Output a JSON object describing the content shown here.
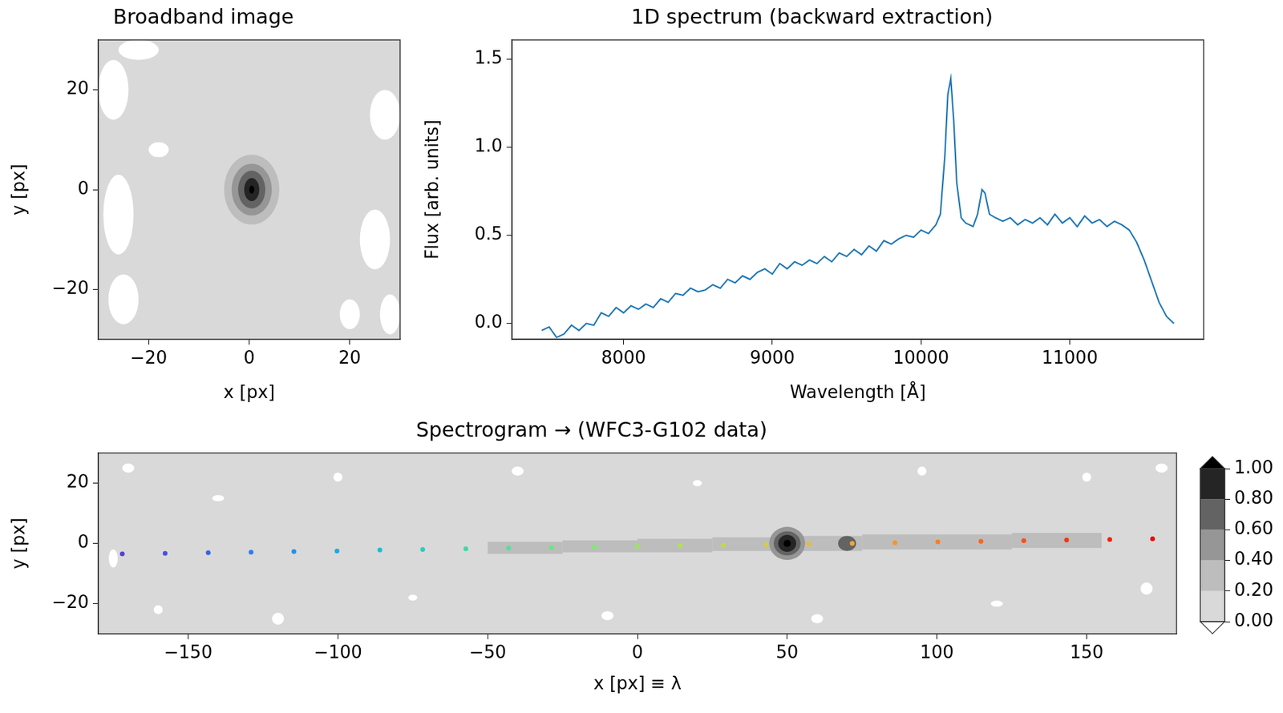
{
  "chart_data": [
    {
      "type": "image",
      "title": "Broadband image",
      "xlabel": "x [px]",
      "ylabel": "y [px]",
      "xlim": [
        -30,
        30
      ],
      "ylim": [
        -30,
        30
      ],
      "xticks": [
        {
          "value": -20,
          "label": "−20"
        },
        0,
        20
      ],
      "yticks": [
        {
          "value": -20,
          "label": "−20"
        },
        0,
        20
      ],
      "grid": false,
      "background": 0.1,
      "regions": [
        {
          "value": -0.05,
          "center": [
            -27,
            20
          ],
          "radii": [
            3,
            6
          ]
        },
        {
          "value": -0.05,
          "center": [
            -26,
            -5
          ],
          "radii": [
            3,
            8
          ]
        },
        {
          "value": -0.05,
          "center": [
            -25,
            -22
          ],
          "radii": [
            3,
            5
          ]
        },
        {
          "value": -0.05,
          "center": [
            -18,
            8
          ],
          "radii": [
            2,
            1.5
          ]
        },
        {
          "value": -0.05,
          "center": [
            -22,
            28
          ],
          "radii": [
            4,
            2
          ]
        },
        {
          "value": -0.05,
          "center": [
            27,
            15
          ],
          "radii": [
            3,
            5
          ]
        },
        {
          "value": -0.05,
          "center": [
            25,
            -10
          ],
          "radii": [
            3,
            6
          ]
        },
        {
          "value": -0.05,
          "center": [
            20,
            -25
          ],
          "radii": [
            2,
            3
          ]
        },
        {
          "value": -0.05,
          "center": [
            28,
            -25
          ],
          "radii": [
            2,
            4
          ]
        },
        {
          "value": 0.3,
          "center": [
            0.5,
            0
          ],
          "radii": [
            5.5,
            7
          ]
        },
        {
          "value": 0.5,
          "center": [
            0.5,
            0
          ],
          "radii": [
            4,
            5.2
          ]
        },
        {
          "value": 0.7,
          "center": [
            0.5,
            0
          ],
          "radii": [
            2.7,
            3.8
          ]
        },
        {
          "value": 0.9,
          "center": [
            0.5,
            0
          ],
          "radii": [
            1.5,
            2.3
          ]
        },
        {
          "value": 1.05,
          "center": [
            0.5,
            0
          ],
          "radii": [
            0.5,
            0.8
          ]
        }
      ]
    },
    {
      "type": "line",
      "title": "1D spectrum (backward extraction)",
      "xlabel": "Wavelength [Å]",
      "ylabel": "Flux [arb. units]",
      "color": "#1f77b4",
      "grid": false,
      "xlim": [
        7250,
        11900
      ],
      "ylim": [
        -0.09,
        1.61
      ],
      "xticks": [
        8000,
        9000,
        10000,
        11000
      ],
      "yticks": [
        {
          "value": 0,
          "label": "0.0"
        },
        {
          "value": 0.5,
          "label": "0.5"
        },
        {
          "value": 1,
          "label": "1.0"
        },
        {
          "value": 1.5,
          "label": "1.5"
        }
      ],
      "x": [
        7450,
        7500,
        7550,
        7600,
        7650,
        7700,
        7750,
        7800,
        7850,
        7900,
        7950,
        8000,
        8050,
        8100,
        8150,
        8200,
        8250,
        8300,
        8350,
        8400,
        8450,
        8500,
        8550,
        8600,
        8650,
        8700,
        8750,
        8800,
        8850,
        8900,
        8950,
        9000,
        9050,
        9100,
        9150,
        9200,
        9250,
        9300,
        9350,
        9400,
        9450,
        9500,
        9550,
        9600,
        9650,
        9700,
        9750,
        9800,
        9850,
        9900,
        9950,
        10000,
        10050,
        10100,
        10130,
        10160,
        10180,
        10200,
        10220,
        10240,
        10270,
        10300,
        10350,
        10380,
        10410,
        10430,
        10460,
        10500,
        10550,
        10600,
        10650,
        10700,
        10750,
        10800,
        10850,
        10900,
        10950,
        11000,
        11050,
        11100,
        11150,
        11200,
        11250,
        11300,
        11350,
        11400,
        11450,
        11500,
        11550,
        11600,
        11650,
        11700
      ],
      "values": [
        -0.04,
        -0.02,
        -0.08,
        -0.06,
        -0.01,
        -0.04,
        0,
        -0.01,
        0.06,
        0.04,
        0.09,
        0.06,
        0.1,
        0.08,
        0.11,
        0.09,
        0.14,
        0.12,
        0.17,
        0.16,
        0.2,
        0.18,
        0.19,
        0.22,
        0.2,
        0.25,
        0.23,
        0.27,
        0.25,
        0.29,
        0.31,
        0.28,
        0.34,
        0.31,
        0.35,
        0.33,
        0.36,
        0.34,
        0.38,
        0.35,
        0.4,
        0.38,
        0.42,
        0.39,
        0.44,
        0.41,
        0.47,
        0.45,
        0.48,
        0.5,
        0.49,
        0.53,
        0.51,
        0.56,
        0.62,
        0.95,
        1.3,
        1.39,
        1.15,
        0.8,
        0.6,
        0.57,
        0.55,
        0.62,
        0.76,
        0.74,
        0.62,
        0.6,
        0.58,
        0.6,
        0.56,
        0.59,
        0.57,
        0.6,
        0.56,
        0.62,
        0.57,
        0.6,
        0.55,
        0.61,
        0.57,
        0.59,
        0.55,
        0.58,
        0.56,
        0.53,
        0.46,
        0.36,
        0.24,
        0.12,
        0.04,
        0
      ]
    },
    {
      "type": "image",
      "title": "Spectrogram → (WFC3-G102 data)",
      "xlabel": "x [px] ≡ λ",
      "ylabel": "y [px]",
      "xlim": [
        -180,
        180
      ],
      "ylim": [
        -30,
        30
      ],
      "xticks": [
        {
          "value": -150,
          "label": "−150"
        },
        {
          "value": -100,
          "label": "−100"
        },
        {
          "value": -50,
          "label": "−50"
        },
        0,
        50,
        100,
        150
      ],
      "yticks": [
        {
          "value": -20,
          "label": "−20"
        },
        0,
        20
      ],
      "grid": false,
      "background": 0.1,
      "regions": [
        {
          "value": -0.05,
          "center": [
            -170,
            25
          ],
          "radii": [
            2,
            1.5
          ]
        },
        {
          "value": -0.05,
          "center": [
            -175,
            -5
          ],
          "radii": [
            1.5,
            3
          ]
        },
        {
          "value": -0.05,
          "center": [
            -160,
            -22
          ],
          "radii": [
            1.5,
            1.5
          ]
        },
        {
          "value": -0.05,
          "center": [
            -140,
            15
          ],
          "radii": [
            2,
            1
          ]
        },
        {
          "value": -0.05,
          "center": [
            -120,
            -25
          ],
          "radii": [
            2,
            2
          ]
        },
        {
          "value": -0.05,
          "center": [
            -100,
            22
          ],
          "radii": [
            1.5,
            1.5
          ]
        },
        {
          "value": -0.05,
          "center": [
            -75,
            -18
          ],
          "radii": [
            1.5,
            1
          ]
        },
        {
          "value": -0.05,
          "center": [
            -40,
            24
          ],
          "radii": [
            2,
            1.5
          ]
        },
        {
          "value": -0.05,
          "center": [
            -10,
            -24
          ],
          "radii": [
            2,
            1.5
          ]
        },
        {
          "value": -0.05,
          "center": [
            20,
            20
          ],
          "radii": [
            1.5,
            1
          ]
        },
        {
          "value": -0.05,
          "center": [
            60,
            -25
          ],
          "radii": [
            2,
            1.5
          ]
        },
        {
          "value": -0.05,
          "center": [
            95,
            24
          ],
          "radii": [
            1.5,
            1.5
          ]
        },
        {
          "value": -0.05,
          "center": [
            120,
            -20
          ],
          "radii": [
            2,
            1
          ]
        },
        {
          "value": -0.05,
          "center": [
            150,
            22
          ],
          "radii": [
            1.5,
            1.5
          ]
        },
        {
          "value": -0.05,
          "center": [
            170,
            -15
          ],
          "radii": [
            2,
            2
          ]
        },
        {
          "value": -0.05,
          "center": [
            175,
            25
          ],
          "radii": [
            2,
            1.5
          ]
        },
        {
          "value": 0.3,
          "x": [
            -50,
            -25
          ],
          "y": [
            -3.5,
            0.5
          ]
        },
        {
          "value": 0.3,
          "x": [
            -25,
            0
          ],
          "y": [
            -3,
            1
          ]
        },
        {
          "value": 0.3,
          "x": [
            0,
            25
          ],
          "y": [
            -3,
            1.5
          ]
        },
        {
          "value": 0.3,
          "x": [
            25,
            50
          ],
          "y": [
            -2.5,
            2
          ]
        },
        {
          "value": 0.3,
          "x": [
            50,
            75
          ],
          "y": [
            -2.5,
            2.5
          ]
        },
        {
          "value": 0.3,
          "x": [
            75,
            100
          ],
          "y": [
            -2,
            3
          ]
        },
        {
          "value": 0.3,
          "x": [
            100,
            125
          ],
          "y": [
            -2,
            3
          ]
        },
        {
          "value": 0.3,
          "x": [
            125,
            155
          ],
          "y": [
            -1.5,
            3.5
          ]
        },
        {
          "value": 0.5,
          "center": [
            50,
            0
          ],
          "radii": [
            6,
            5.5
          ]
        },
        {
          "value": 0.7,
          "center": [
            50,
            0
          ],
          "radii": [
            4.5,
            4
          ]
        },
        {
          "value": 0.9,
          "center": [
            50,
            0
          ],
          "radii": [
            3,
            2.8
          ]
        },
        {
          "value": 1.05,
          "center": [
            50,
            0
          ],
          "radii": [
            1.2,
            1.2
          ]
        },
        {
          "value": 0.65,
          "center": [
            70,
            0
          ],
          "radii": [
            3,
            2.5
          ]
        }
      ],
      "points": {
        "marker": "circle",
        "x": [
          -172,
          -157.7,
          -143.3,
          -129,
          -114.7,
          -100.3,
          -86,
          -71.7,
          -57.3,
          -43,
          -28.7,
          -14.3,
          0,
          14.3,
          28.7,
          43,
          57.3,
          71.7,
          86,
          100.3,
          114.7,
          129,
          143.3,
          157.7,
          172
        ],
        "y": [
          -3.5,
          -3.3,
          -3.1,
          -2.9,
          -2.7,
          -2.5,
          -2.2,
          -2,
          -1.8,
          -1.6,
          -1.4,
          -1.2,
          -1,
          -0.8,
          -0.6,
          -0.4,
          -0.2,
          0,
          0.2,
          0.5,
          0.7,
          0.9,
          1.1,
          1.3,
          1.5
        ],
        "colors": [
          "#5a3fd6",
          "#4a4fe0",
          "#3a63e8",
          "#2d7aec",
          "#2391e8",
          "#1ea8de",
          "#20bcd0",
          "#2bcdbf",
          "#3ad9aa",
          "#4fe296",
          "#66e882",
          "#7eea6f",
          "#96e85f",
          "#aee352",
          "#c3da47",
          "#d6cd3f",
          "#e5bc39",
          "#f0a933",
          "#f7942d",
          "#fb7d27",
          "#fc6420",
          "#fa4c1a",
          "#f43514",
          "#ee200e",
          "#e60b08"
        ]
      },
      "colorbar": {
        "ylim": [
          0,
          1
        ],
        "yticks": [
          {
            "value": 0,
            "label": "0.00"
          },
          {
            "value": 0.2,
            "label": "0.20"
          },
          {
            "value": 0.4,
            "label": "0.40"
          },
          {
            "value": 0.6,
            "label": "0.60"
          },
          {
            "value": 0.8,
            "label": "0.80"
          },
          {
            "value": 1,
            "label": "1.00"
          }
        ],
        "colors": [
          "#d9d9d9",
          "#bdbdbd",
          "#969696",
          "#636363",
          "#252525"
        ]
      }
    }
  ]
}
